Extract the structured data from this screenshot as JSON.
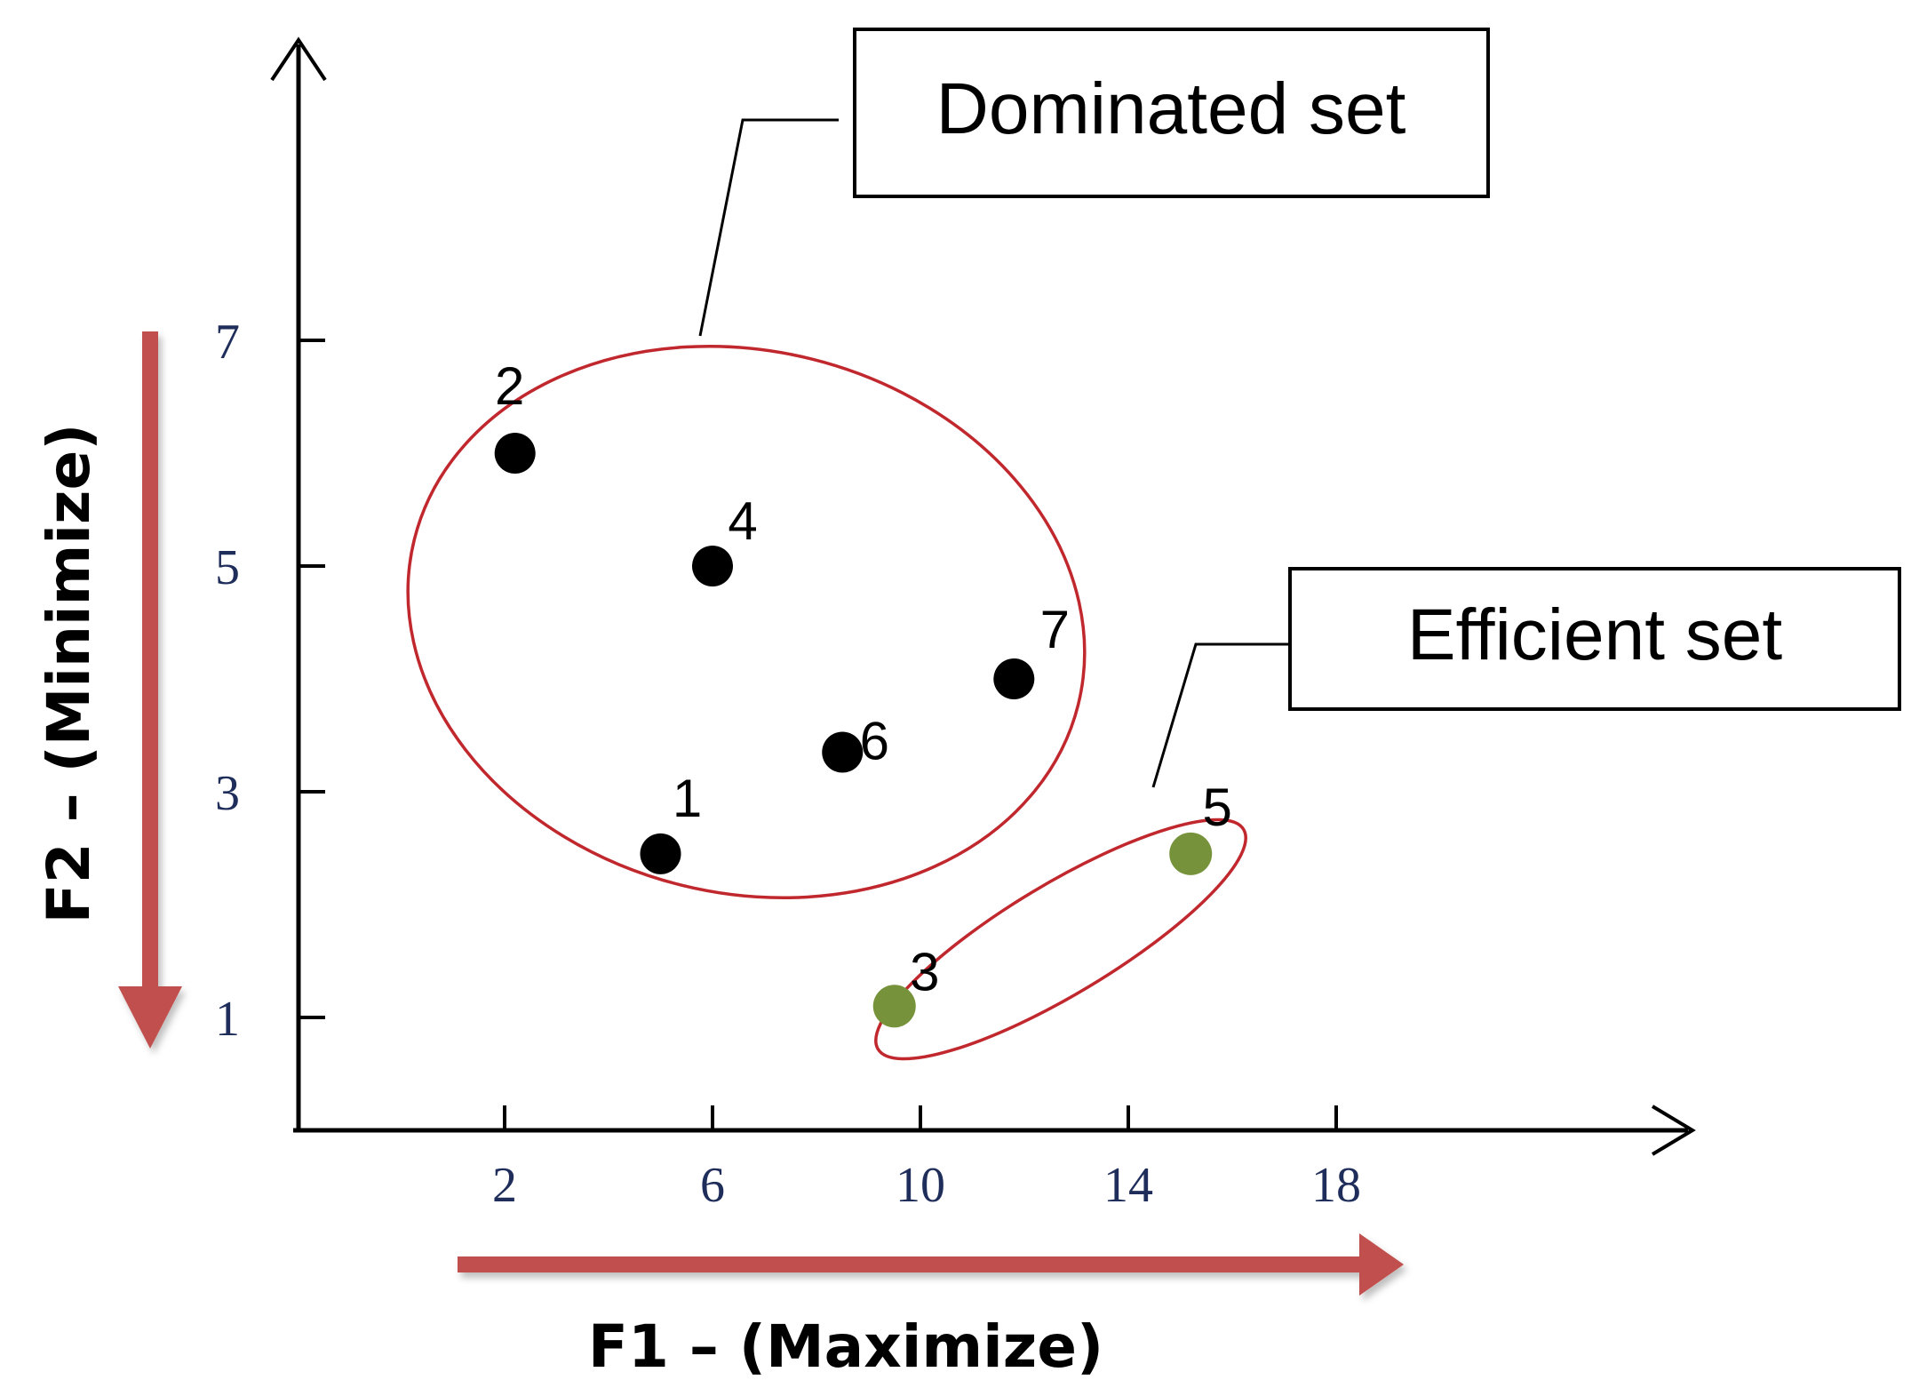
{
  "chart_data": {
    "type": "scatter",
    "xlabel": "F1 – (Maximize)",
    "ylabel": "F2 – (Minimize)",
    "xticks": [
      2,
      6,
      10,
      14,
      18
    ],
    "yticks": [
      1,
      3,
      5,
      7
    ],
    "xlim": [
      -2,
      32
    ],
    "ylim": [
      0,
      10.5
    ],
    "points": [
      {
        "label": "1",
        "x": 5.0,
        "y": 2.45,
        "group": "dominated"
      },
      {
        "label": "2",
        "x": 2.2,
        "y": 6.0,
        "group": "dominated"
      },
      {
        "label": "3",
        "x": 9.5,
        "y": 1.1,
        "group": "efficient"
      },
      {
        "label": "4",
        "x": 6.0,
        "y": 5.0,
        "group": "dominated"
      },
      {
        "label": "5",
        "x": 15.2,
        "y": 2.45,
        "group": "efficient"
      },
      {
        "label": "6",
        "x": 8.5,
        "y": 3.35,
        "group": "dominated"
      },
      {
        "label": "7",
        "x": 11.8,
        "y": 4.0,
        "group": "dominated"
      }
    ],
    "annotations": [
      {
        "group": "dominated",
        "text": "Dominated set"
      },
      {
        "group": "efficient",
        "text": "Efficient set"
      }
    ],
    "colors": {
      "dominated": "#000000",
      "efficient": "#76933c",
      "ellipse": "#c0282e",
      "arrow": "#c0504d"
    }
  }
}
